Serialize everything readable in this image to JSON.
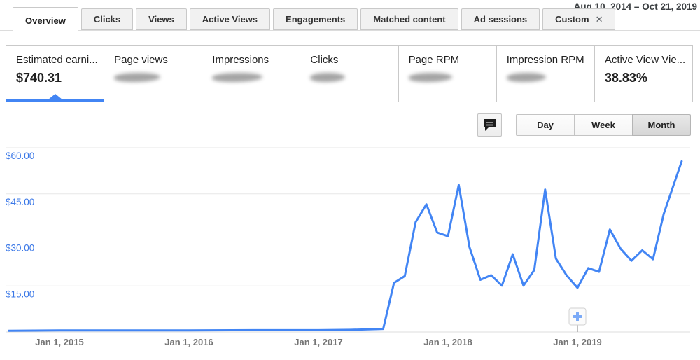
{
  "header": {
    "date_range": "Aug 10, 2014 – Oct 21, 2019"
  },
  "tabs": {
    "items": [
      {
        "label": "Overview",
        "active": true
      },
      {
        "label": "Clicks"
      },
      {
        "label": "Views"
      },
      {
        "label": "Active Views"
      },
      {
        "label": "Engagements"
      },
      {
        "label": "Matched content"
      },
      {
        "label": "Ad sessions"
      },
      {
        "label": "Custom",
        "closable": true
      }
    ],
    "close_icon": "✕"
  },
  "metrics": {
    "cards": [
      {
        "label": "Estimated earni...",
        "value": "$740.31",
        "selected": true
      },
      {
        "label": "Page views",
        "value_hidden": true
      },
      {
        "label": "Impressions",
        "value_hidden": true
      },
      {
        "label": "Clicks",
        "value_hidden": true
      },
      {
        "label": "Page RPM",
        "value_hidden": true
      },
      {
        "label": "Impression RPM",
        "value_hidden": true
      },
      {
        "label": "Active View Vie...",
        "value": "38.83%"
      }
    ]
  },
  "toolbar": {
    "comment_icon": "speech-bubble-icon",
    "granularity": {
      "options": [
        {
          "label": "Day"
        },
        {
          "label": "Week"
        },
        {
          "label": "Month",
          "selected": true
        }
      ]
    }
  },
  "chart_data": {
    "type": "line",
    "series_name": "Estimated earnings",
    "line_color": "#4285f4",
    "grid": true,
    "legend": "none",
    "ylim": [
      0,
      63
    ],
    "x_range": [
      "2014-08-10",
      "2019-10-21"
    ],
    "y_ticks": [
      {
        "label": "$60.00",
        "value": 60
      },
      {
        "label": "$45.00",
        "value": 45
      },
      {
        "label": "$30.00",
        "value": 30
      },
      {
        "label": "$15.00",
        "value": 15
      }
    ],
    "x_ticks": [
      {
        "label": "Jan 1, 2015",
        "date": "2015-01-01"
      },
      {
        "label": "Jan 1, 2016",
        "date": "2016-01-01"
      },
      {
        "label": "Jan 1, 2017",
        "date": "2017-01-01"
      },
      {
        "label": "Jan 1, 2018",
        "date": "2018-01-01"
      },
      {
        "label": "Jan 1, 2019",
        "date": "2019-01-01"
      }
    ],
    "points": [
      [
        "2014-08-10",
        0.4
      ],
      [
        "2015-01-01",
        0.5
      ],
      [
        "2015-07-01",
        0.5
      ],
      [
        "2016-01-01",
        0.5
      ],
      [
        "2016-07-01",
        0.6
      ],
      [
        "2017-01-01",
        0.6
      ],
      [
        "2017-04-01",
        0.7
      ],
      [
        "2017-07-01",
        1.0
      ],
      [
        "2017-08-01",
        16.0
      ],
      [
        "2017-09-01",
        18.2
      ],
      [
        "2017-10-01",
        35.8
      ],
      [
        "2017-11-01",
        41.6
      ],
      [
        "2017-12-01",
        32.4
      ],
      [
        "2018-01-01",
        31.2
      ],
      [
        "2018-02-01",
        47.9
      ],
      [
        "2018-03-01",
        27.6
      ],
      [
        "2018-04-01",
        17.0
      ],
      [
        "2018-05-01",
        18.5
      ],
      [
        "2018-06-01",
        15.1
      ],
      [
        "2018-07-01",
        25.3
      ],
      [
        "2018-08-01",
        15.1
      ],
      [
        "2018-09-01",
        20.2
      ],
      [
        "2018-10-01",
        46.4
      ],
      [
        "2018-11-01",
        23.9
      ],
      [
        "2018-12-01",
        18.4
      ],
      [
        "2019-01-01",
        14.4
      ],
      [
        "2019-02-01",
        20.8
      ],
      [
        "2019-03-01",
        19.6
      ],
      [
        "2019-04-01",
        33.4
      ],
      [
        "2019-05-01",
        27.1
      ],
      [
        "2019-06-01",
        23.2
      ],
      [
        "2019-07-01",
        26.6
      ],
      [
        "2019-08-01",
        23.7
      ],
      [
        "2019-09-01",
        38.5
      ],
      [
        "2019-10-21",
        55.6
      ]
    ],
    "marker": {
      "type": "plus",
      "icon": "plus-icon",
      "date": "2019-01-01"
    }
  }
}
